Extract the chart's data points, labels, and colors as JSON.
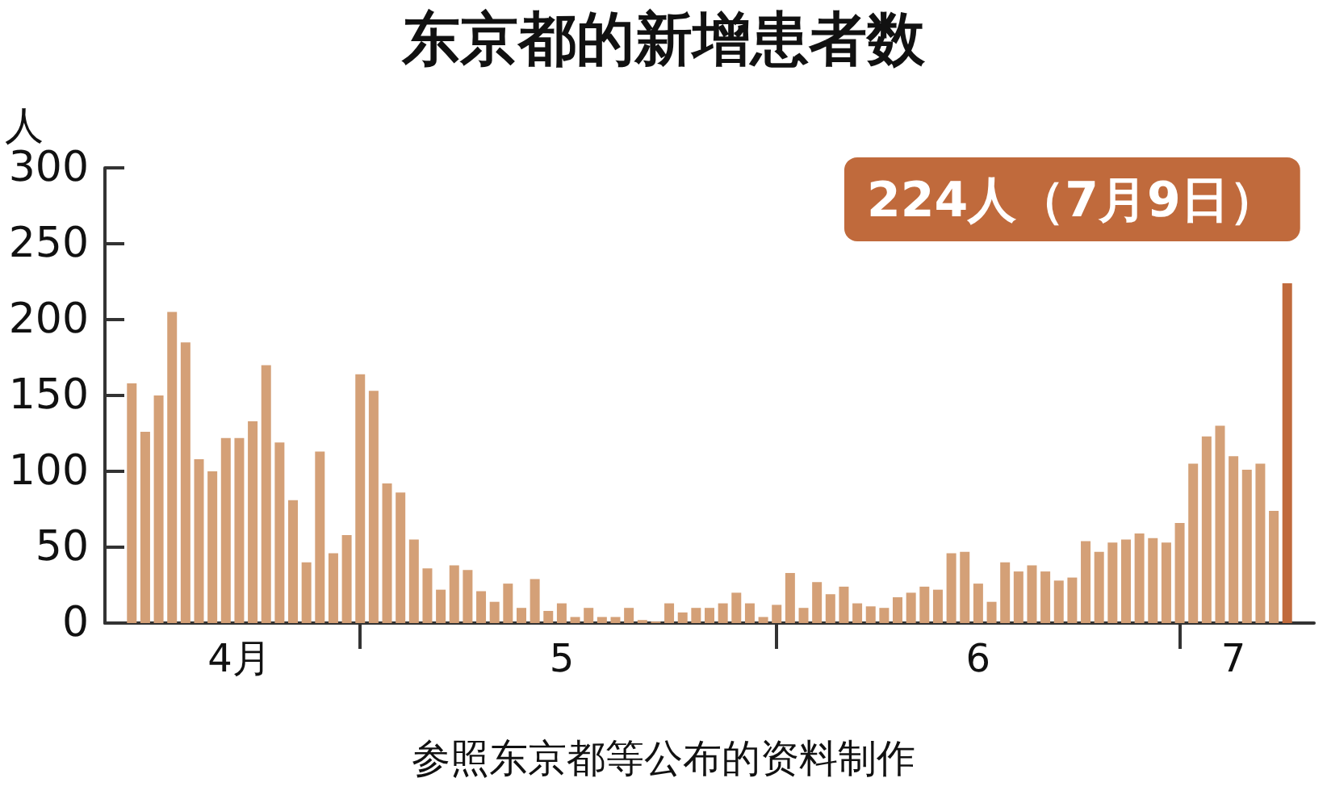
{
  "chart_data": {
    "type": "bar",
    "title": "东京都的新增患者数",
    "ylabel": "人",
    "annotations": [
      {
        "text": "224人（7月9日）",
        "x": "--07-09",
        "y": 224
      },
      "参照东京都等公布的资料制作"
    ],
    "x": [
      "--04-14",
      "--04-15",
      "--04-16",
      "--04-17",
      "--04-18",
      "--04-19",
      "--04-20",
      "--04-21",
      "--04-22",
      "--04-23",
      "--04-24",
      "--04-25",
      "--04-26",
      "--04-27",
      "--04-28",
      "--04-29",
      "--04-30",
      "--05-01",
      "--05-02",
      "--05-03",
      "--05-04",
      "--05-05",
      "--05-06",
      "--05-07",
      "--05-08",
      "--05-09",
      "--05-10",
      "--05-11",
      "--05-12",
      "--05-13",
      "--05-14",
      "--05-15",
      "--05-16",
      "--05-17",
      "--05-18",
      "--05-19",
      "--05-20",
      "--05-21",
      "--05-22",
      "--05-23",
      "--05-24",
      "--05-25",
      "--05-26",
      "--05-27",
      "--05-28",
      "--05-29",
      "--05-30",
      "--05-31",
      "--06-01",
      "--06-02",
      "--06-03",
      "--06-04",
      "--06-05",
      "--06-06",
      "--06-07",
      "--06-08",
      "--06-09",
      "--06-10",
      "--06-11",
      "--06-12",
      "--06-13",
      "--06-14",
      "--06-15",
      "--06-16",
      "--06-17",
      "--06-18",
      "--06-19",
      "--06-20",
      "--06-21",
      "--06-22",
      "--06-23",
      "--06-24",
      "--06-25",
      "--06-26",
      "--06-27",
      "--06-28",
      "--06-29",
      "--06-30",
      "--07-01",
      "--07-02",
      "--07-03",
      "--07-04",
      "--07-05",
      "--07-06",
      "--07-07",
      "--07-08",
      "--07-09"
    ],
    "values": [
      158,
      126,
      150,
      205,
      185,
      108,
      100,
      122,
      122,
      133,
      170,
      119,
      81,
      40,
      113,
      46,
      58,
      164,
      153,
      92,
      86,
      55,
      36,
      22,
      38,
      35,
      21,
      14,
      26,
      10,
      29,
      8,
      13,
      4,
      10,
      4,
      4,
      10,
      2,
      1,
      13,
      7,
      10,
      10,
      13,
      20,
      13,
      4,
      12,
      33,
      10,
      27,
      19,
      24,
      13,
      11,
      10,
      17,
      20,
      24,
      22,
      46,
      47,
      26,
      14,
      40,
      34,
      38,
      34,
      28,
      30,
      54,
      47,
      53,
      55,
      59,
      56,
      53,
      66,
      105,
      123,
      130,
      110,
      101,
      105,
      74,
      224
    ],
    "colors": [
      "#d4a077",
      "#d4a077",
      "#d4a077",
      "#d4a077",
      "#d4a077",
      "#d4a077",
      "#d4a077",
      "#d4a077",
      "#d4a077",
      "#d4a077",
      "#d4a077",
      "#d4a077",
      "#d4a077",
      "#d4a077",
      "#d4a077",
      "#d4a077",
      "#d4a077",
      "#d4a077",
      "#d4a077",
      "#d4a077",
      "#d4a077",
      "#d4a077",
      "#d4a077",
      "#d4a077",
      "#d4a077",
      "#d4a077",
      "#d4a077",
      "#d4a077",
      "#d4a077",
      "#d4a077",
      "#d4a077",
      "#d4a077",
      "#d4a077",
      "#d4a077",
      "#d4a077",
      "#d4a077",
      "#d4a077",
      "#d4a077",
      "#d4a077",
      "#d4a077",
      "#d4a077",
      "#d4a077",
      "#d4a077",
      "#d4a077",
      "#d4a077",
      "#d4a077",
      "#d4a077",
      "#d4a077",
      "#d4a077",
      "#d4a077",
      "#d4a077",
      "#d4a077",
      "#d4a077",
      "#d4a077",
      "#d4a077",
      "#d4a077",
      "#d4a077",
      "#d4a077",
      "#d4a077",
      "#d4a077",
      "#d4a077",
      "#d4a077",
      "#d4a077",
      "#d4a077",
      "#d4a077",
      "#d4a077",
      "#d4a077",
      "#d4a077",
      "#d4a077",
      "#d4a077",
      "#d4a077",
      "#d4a077",
      "#d4a077",
      "#d4a077",
      "#d4a077",
      "#d4a077",
      "#d4a077",
      "#d4a077",
      "#d4a077",
      "#d4a077",
      "#d4a077",
      "#d4a077",
      "#d4a077",
      "#d4a077",
      "#d4a077",
      "#d4a077",
      "#c06a3c"
    ],
    "xlim": [
      "--04-12",
      "--07-11"
    ],
    "xticks": [
      {
        "value": "--04-22",
        "label": "4月"
      },
      {
        "value": "--05-01",
        "label": null
      },
      {
        "value": "--05-16",
        "label": "5"
      },
      {
        "value": "--06-01",
        "label": null
      },
      {
        "value": "--06-16",
        "label": "6"
      },
      {
        "value": "--07-01",
        "label": null
      },
      {
        "value": "--07-05",
        "label": "7"
      }
    ],
    "ylim": [
      0,
      300
    ],
    "yticks": [
      0,
      50,
      100,
      150,
      200,
      250,
      300
    ],
    "grid": false
  }
}
